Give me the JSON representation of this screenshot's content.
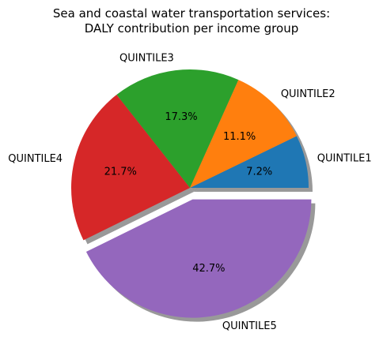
{
  "chart_data": {
    "type": "pie",
    "title": "Sea and coastal water transportation services:\nDALY contribution per income group",
    "labels": [
      "QUINTILE1",
      "QUINTILE2",
      "QUINTILE3",
      "QUINTILE4",
      "QUINTILE5"
    ],
    "values": [
      7.2,
      11.1,
      17.3,
      21.7,
      42.7
    ],
    "value_labels": [
      "7.2%",
      "11.1%",
      "17.3%",
      "21.7%",
      "42.7%"
    ],
    "colors": [
      "#1f77b4",
      "#ff7f0e",
      "#2ca02c",
      "#d62728",
      "#9467bd"
    ],
    "explode": [
      0,
      0,
      0,
      0,
      0.1
    ],
    "shadow": true,
    "start_angle_deg": 0,
    "direction": "counterclockwise",
    "legend": "none"
  }
}
